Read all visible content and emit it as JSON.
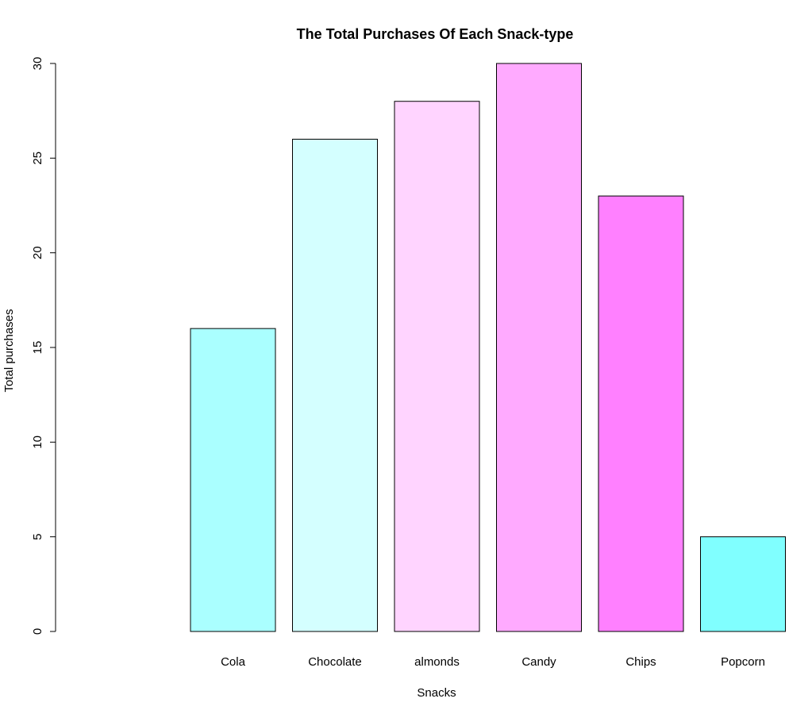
{
  "chart_data": {
    "type": "bar",
    "title": "The Total Purchases Of Each Snack-type",
    "xlabel": "Snacks",
    "ylabel": "Total purchases",
    "categories": [
      "Cola",
      "Chocolate",
      "almonds",
      "Candy",
      "Chips",
      "Popcorn"
    ],
    "values": [
      16,
      26,
      28,
      30,
      23,
      5
    ],
    "colors": [
      "#AAFFFF",
      "#D4FFFF",
      "#FFD4FF",
      "#FFAAFF",
      "#FF80FF",
      "#80FFFF"
    ],
    "ylim": [
      0,
      30
    ],
    "yticks": [
      "0",
      "5",
      "10",
      "15",
      "20",
      "25",
      "30"
    ],
    "grid": false,
    "legend": "none"
  }
}
